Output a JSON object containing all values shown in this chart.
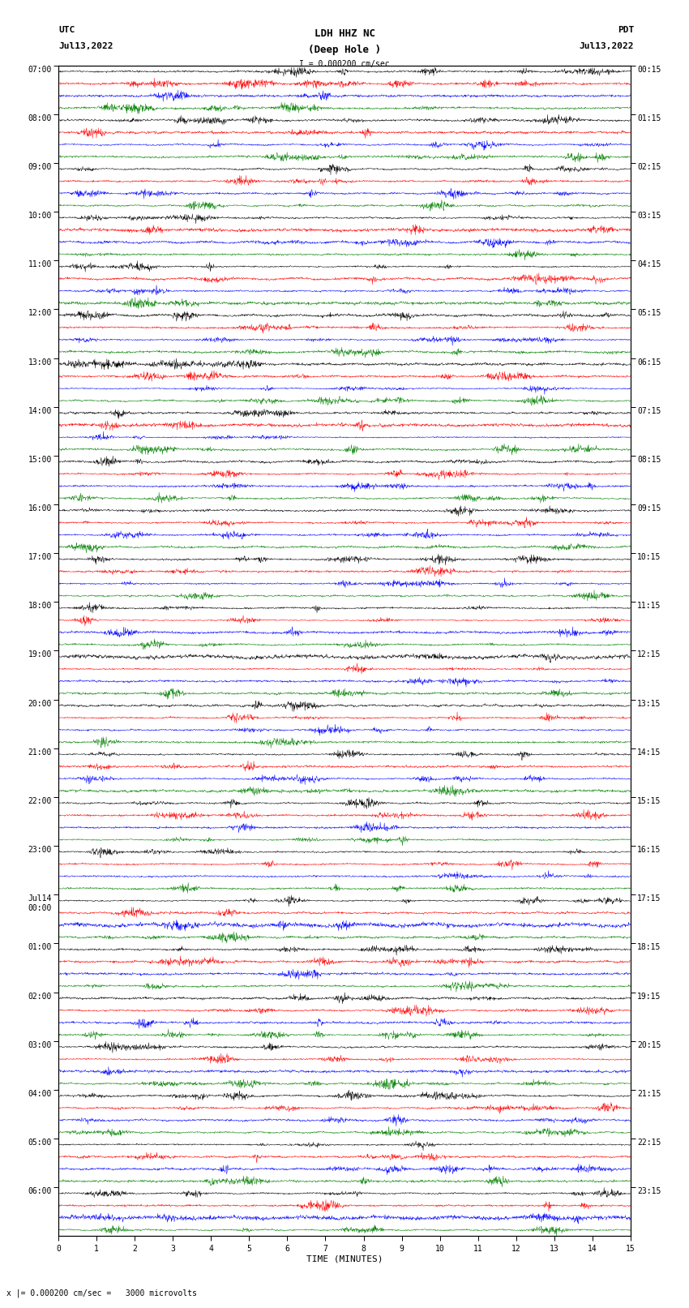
{
  "title_line1": "LDH HHZ NC",
  "title_line2": "(Deep Hole )",
  "scale_label": "I = 0.000200 cm/sec",
  "left_label_top": "UTC",
  "left_label_date": "Jul13,2022",
  "right_label_top": "PDT",
  "right_label_date": "Jul13,2022",
  "bottom_label": "TIME (MINUTES)",
  "bottom_note": "x |= 0.000200 cm/sec =   3000 microvolts",
  "utc_times_labeled": [
    "07:00",
    "08:00",
    "09:00",
    "10:00",
    "11:00",
    "12:00",
    "13:00",
    "14:00",
    "15:00",
    "16:00",
    "17:00",
    "18:00",
    "19:00",
    "20:00",
    "21:00",
    "22:00",
    "23:00",
    "Jul14\n00:00",
    "01:00",
    "02:00",
    "03:00",
    "04:00",
    "05:00",
    "06:00"
  ],
  "pdt_times_labeled": [
    "00:15",
    "01:15",
    "02:15",
    "03:15",
    "04:15",
    "05:15",
    "06:15",
    "07:15",
    "08:15",
    "09:15",
    "10:15",
    "11:15",
    "12:15",
    "13:15",
    "14:15",
    "15:15",
    "16:15",
    "17:15",
    "18:15",
    "19:15",
    "20:15",
    "21:15",
    "22:15",
    "23:15"
  ],
  "colors": [
    "black",
    "red",
    "blue",
    "green"
  ],
  "n_hour_blocks": 24,
  "n_channels": 4,
  "time_minutes": 15,
  "background_color": "white"
}
